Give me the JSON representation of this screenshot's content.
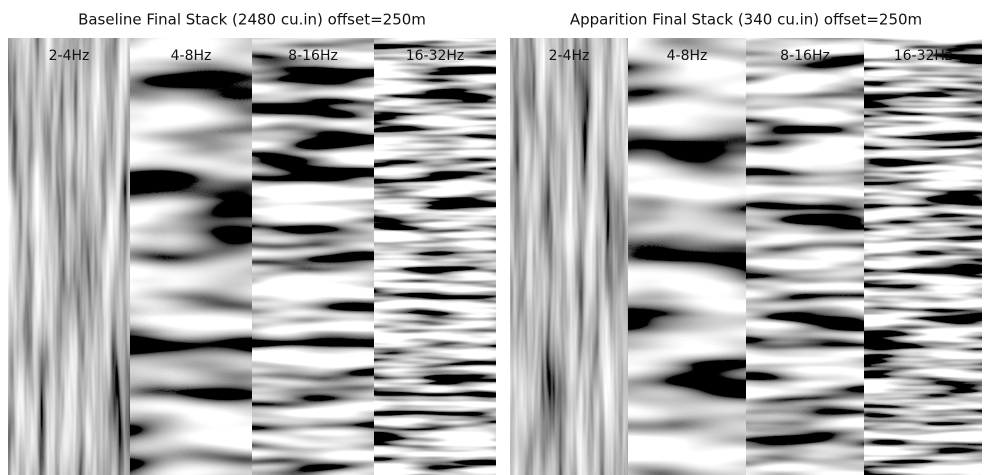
{
  "panels": [
    {
      "title": "Baseline Final Stack (2480 cu.in) offset=250m",
      "bands": [
        "2-4Hz",
        "4-8Hz",
        "8-16Hz",
        "16-32Hz"
      ]
    },
    {
      "title": "Apparition Final Stack (340 cu.in) offset=250m",
      "bands": [
        "2-4Hz",
        "4-8Hz",
        "8-16Hz",
        "16-32Hz"
      ]
    }
  ]
}
